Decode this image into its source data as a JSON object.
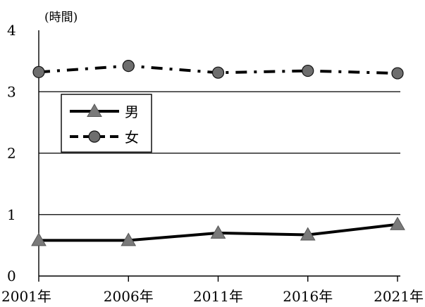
{
  "chart_data": {
    "type": "line",
    "unit_label": "(時間)",
    "categories": [
      "2001年",
      "2006年",
      "2011年",
      "2016年",
      "2021年"
    ],
    "ylim": [
      0,
      4
    ],
    "yticks": [
      "0",
      "1",
      "2",
      "3",
      "4"
    ],
    "grid": true,
    "legend_position": "upper-left",
    "series": [
      {
        "name": "男",
        "values": [
          0.58,
          0.58,
          0.7,
          0.67,
          0.84
        ],
        "line_style": "solid",
        "marker": "triangle",
        "line_color": "#000000",
        "marker_color": "#7a7a7a"
      },
      {
        "name": "女",
        "values": [
          3.32,
          3.42,
          3.31,
          3.34,
          3.3
        ],
        "line_style": "dash-dot",
        "marker": "circle",
        "line_color": "#000000",
        "marker_color": "#6e6e6e"
      }
    ]
  }
}
